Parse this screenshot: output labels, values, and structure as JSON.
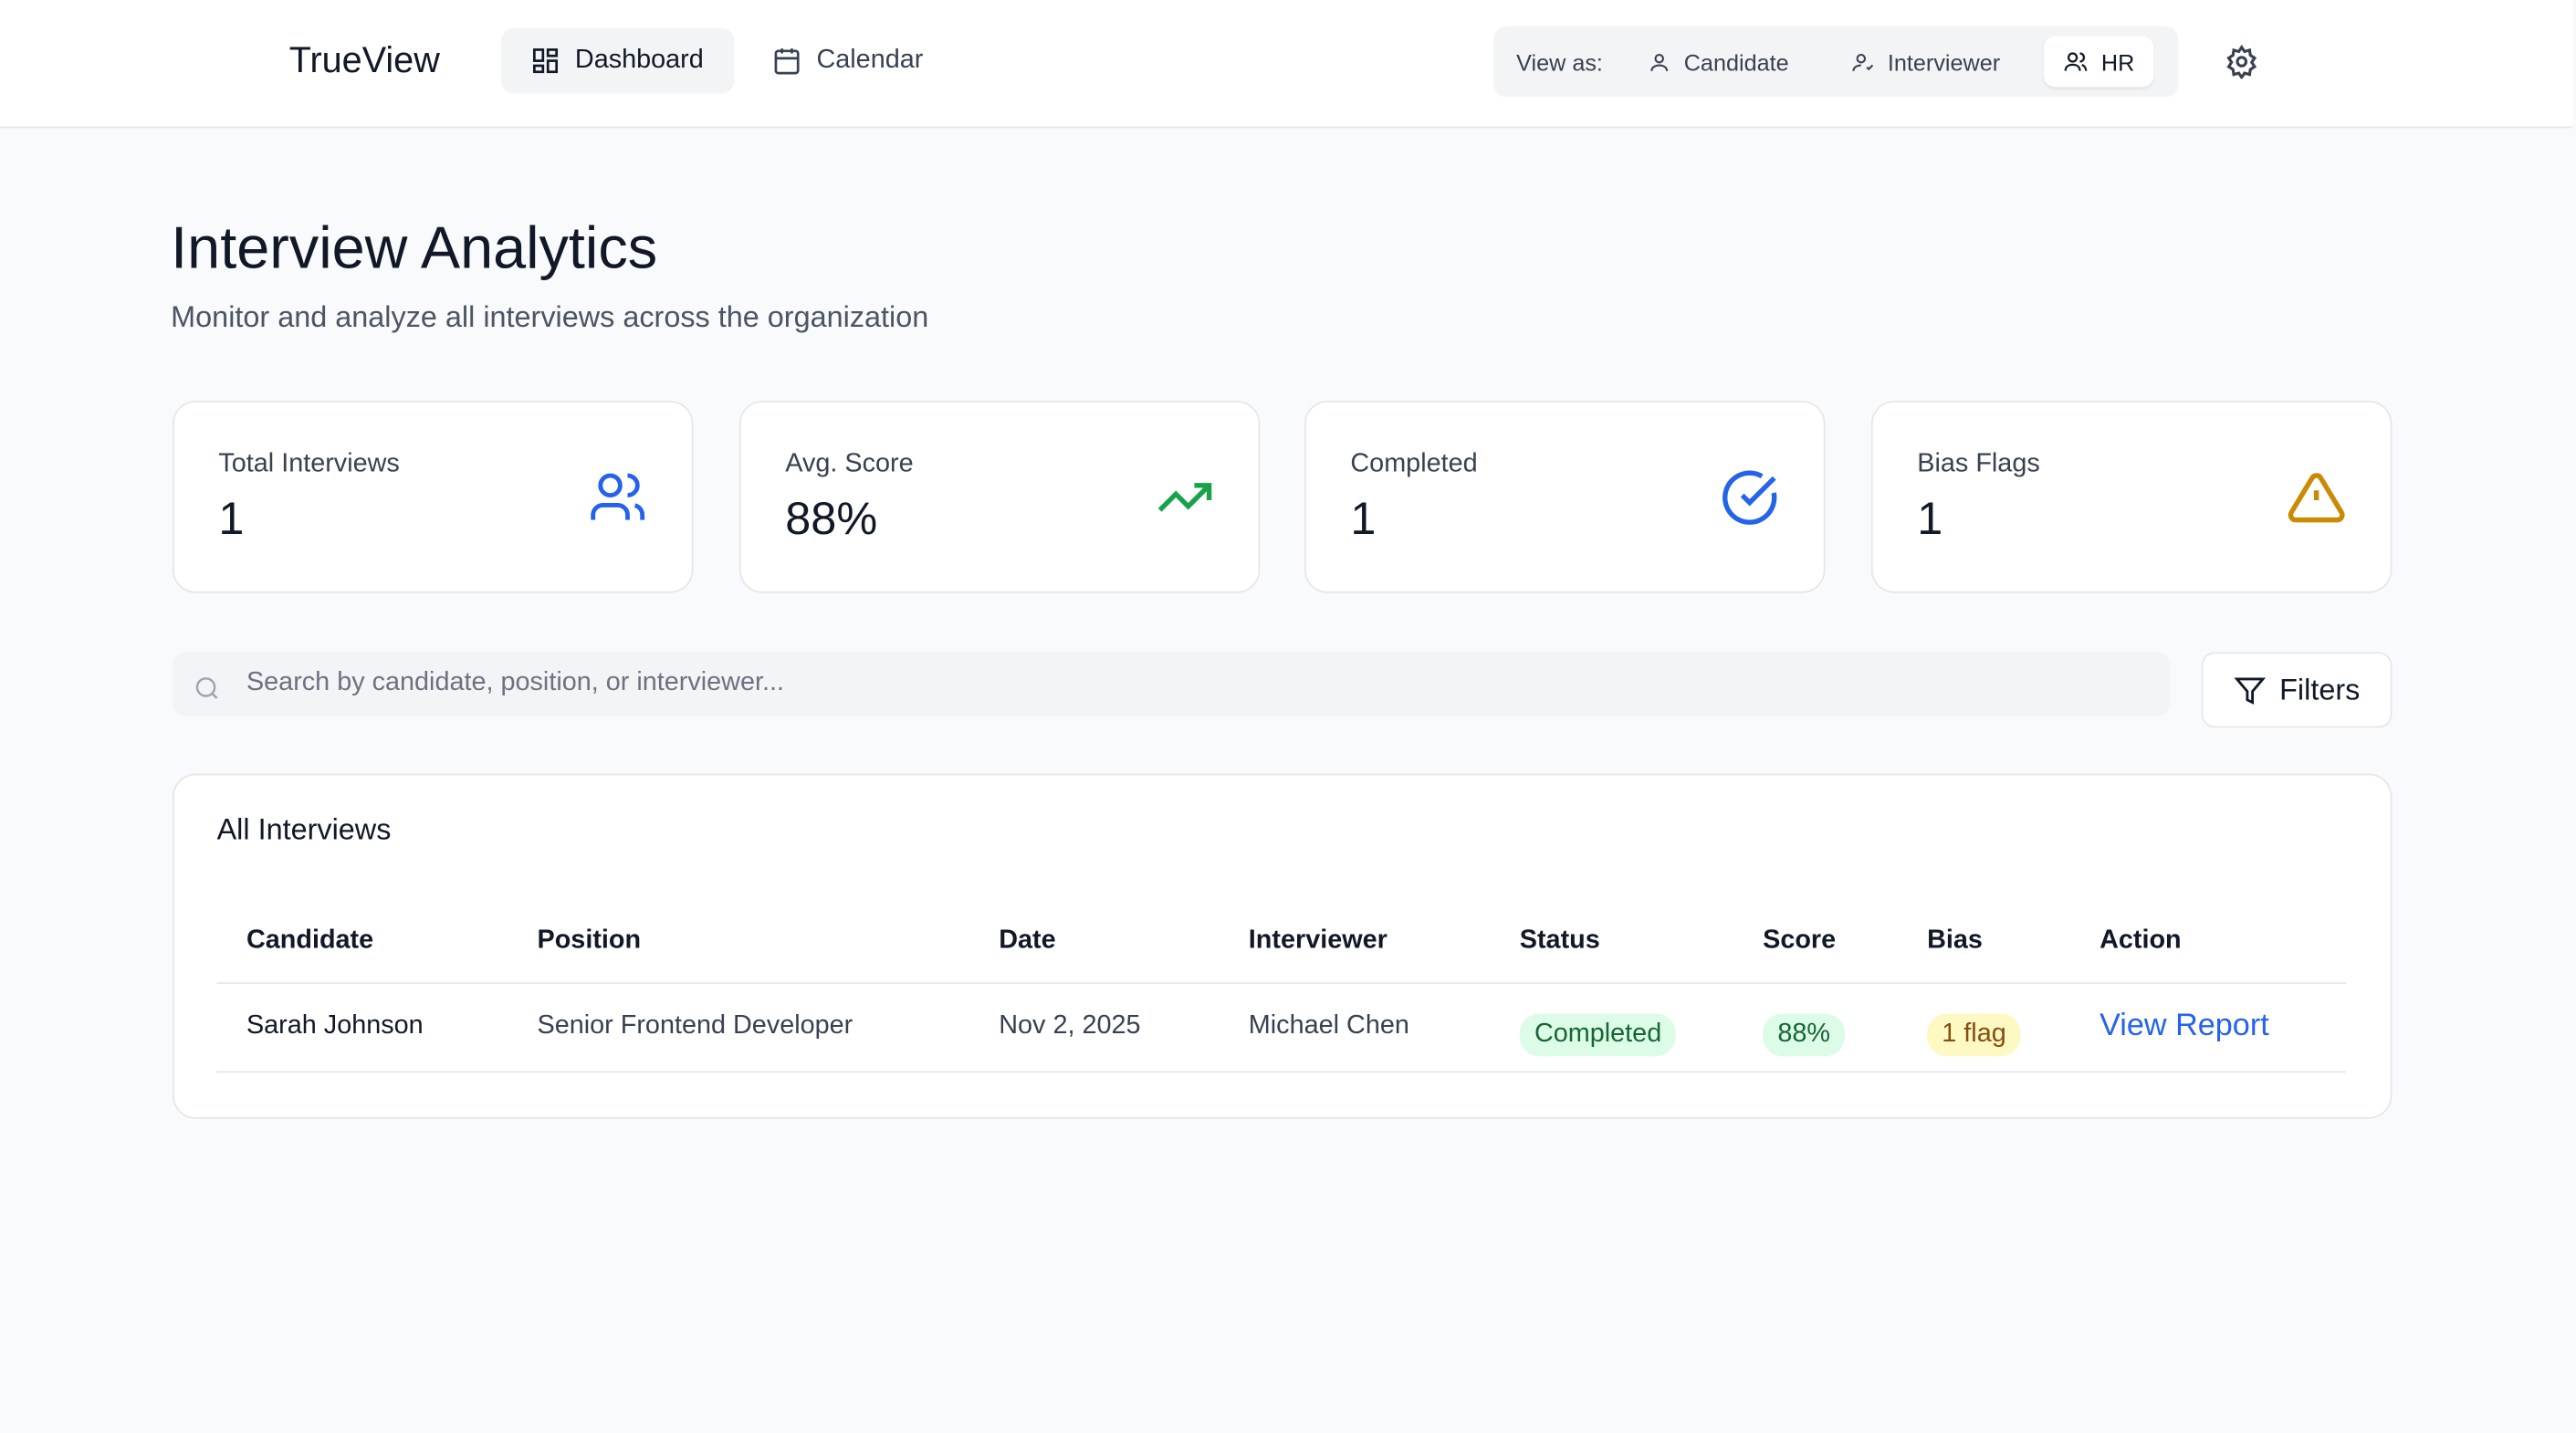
{
  "nav": {
    "brand": "TrueView",
    "tabs": [
      "Dashboard",
      "Calendar"
    ],
    "view_as_label": "View as:",
    "roles": [
      "Candidate",
      "Interviewer",
      "HR"
    ]
  },
  "header": {
    "title": "Interview Analytics",
    "subtitle": "Monitor and analyze all interviews across the organization"
  },
  "stats": [
    {
      "label": "Total Interviews",
      "value": "1"
    },
    {
      "label": "Avg. Score",
      "value": "88%"
    },
    {
      "label": "Completed",
      "value": "1"
    },
    {
      "label": "Bias Flags",
      "value": "1"
    }
  ],
  "search": {
    "placeholder": "Search by candidate, position, or interviewer...",
    "filters": "Filters"
  },
  "table": {
    "title": "All Interviews",
    "columns": [
      "Candidate",
      "Position",
      "Date",
      "Interviewer",
      "Status",
      "Score",
      "Bias",
      "Action"
    ],
    "rows": [
      [
        "Sarah Johnson",
        "Senior Frontend Developer",
        "Nov 2, 2025",
        "Michael Chen",
        "Completed",
        "88%",
        "1 flag",
        "View Report"
      ]
    ]
  }
}
